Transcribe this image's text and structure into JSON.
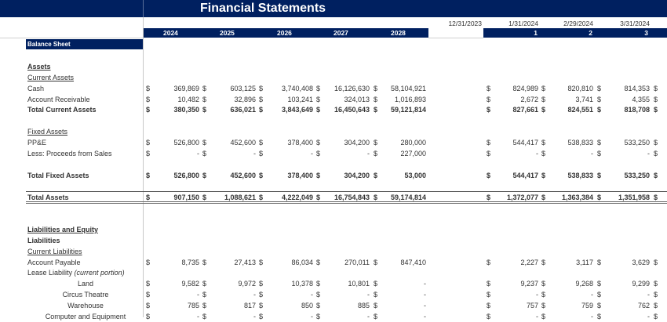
{
  "title": "Financial Statements",
  "colors": {
    "navy": "#002060",
    "text": "#333333",
    "white": "#ffffff"
  },
  "header": {
    "years": [
      "2024",
      "2025",
      "2026",
      "2027",
      "2028"
    ],
    "dates": [
      "12/31/2023",
      "1/31/2024",
      "2/29/2024",
      "3/31/2024"
    ],
    "month_indices": [
      "1",
      "2",
      "3"
    ]
  },
  "section_label": "Balance Sheet",
  "currency_symbol": "$",
  "rows": [
    {
      "label": "Assets",
      "style": "bold-underline"
    },
    {
      "label": "Current Assets",
      "style": "underline"
    },
    {
      "label": "Cash",
      "style": "normal",
      "annual": [
        "369,869",
        "603,125",
        "3,740,408",
        "16,126,630",
        "58,104,921"
      ],
      "monthly": [
        "824,989",
        "820,810",
        "814,353"
      ]
    },
    {
      "label": "Account Receivable",
      "style": "normal",
      "annual": [
        "10,482",
        "32,896",
        "103,241",
        "324,013",
        "1,016,893"
      ],
      "monthly": [
        "2,672",
        "3,741",
        "4,355"
      ]
    },
    {
      "label": "Total Current Assets",
      "style": "bold",
      "annual": [
        "380,350",
        "636,021",
        "3,843,649",
        "16,450,643",
        "59,121,814"
      ],
      "monthly": [
        "827,661",
        "824,551",
        "818,708"
      ]
    },
    {
      "label": "Fixed Assets",
      "style": "underline"
    },
    {
      "label": "PP&E",
      "style": "normal",
      "annual": [
        "526,800",
        "452,600",
        "378,400",
        "304,200",
        "280,000"
      ],
      "monthly": [
        "544,417",
        "538,833",
        "533,250"
      ]
    },
    {
      "label": "Less: Proceeds from Sales",
      "style": "normal",
      "annual": [
        "-",
        "-",
        "-",
        "-",
        "227,000"
      ],
      "monthly": [
        "-",
        "-",
        "-"
      ]
    },
    {
      "label": "Total Fixed Assets",
      "style": "bold",
      "annual": [
        "526,800",
        "452,600",
        "378,400",
        "304,200",
        "53,000"
      ],
      "monthly": [
        "544,417",
        "538,833",
        "533,250"
      ]
    },
    {
      "label": "Total Assets",
      "style": "bold",
      "annual": [
        "907,150",
        "1,088,621",
        "4,222,049",
        "16,754,843",
        "59,174,814"
      ],
      "monthly": [
        "1,372,077",
        "1,363,384",
        "1,351,958"
      ]
    },
    {
      "label": "Liabilities and Equity",
      "style": "bold-underline"
    },
    {
      "label": "Liabilities",
      "style": "bold"
    },
    {
      "label": "Current Liabilities",
      "style": "underline"
    },
    {
      "label": "Account Payable",
      "style": "normal",
      "annual": [
        "8,735",
        "27,413",
        "86,034",
        "270,011",
        "847,410"
      ],
      "monthly": [
        "2,227",
        "3,117",
        "3,629"
      ]
    },
    {
      "label": "Lease Liability ",
      "label_italic": "(current portion)",
      "style": "normal"
    },
    {
      "label": "Land",
      "style": "center",
      "annual": [
        "9,582",
        "9,972",
        "10,378",
        "10,801",
        "-"
      ],
      "monthly": [
        "9,237",
        "9,268",
        "9,299"
      ]
    },
    {
      "label": "Circus Theatre",
      "style": "center",
      "annual": [
        "-",
        "-",
        "-",
        "-",
        "-"
      ],
      "monthly": [
        "-",
        "-",
        "-"
      ]
    },
    {
      "label": "Warehouse",
      "style": "center",
      "annual": [
        "785",
        "817",
        "850",
        "885",
        "-"
      ],
      "monthly": [
        "757",
        "759",
        "762"
      ]
    },
    {
      "label": "Computer and Equipment",
      "style": "center",
      "annual": [
        "-",
        "-",
        "-",
        "-",
        "-"
      ],
      "monthly": [
        "-",
        "-",
        "-"
      ]
    }
  ]
}
